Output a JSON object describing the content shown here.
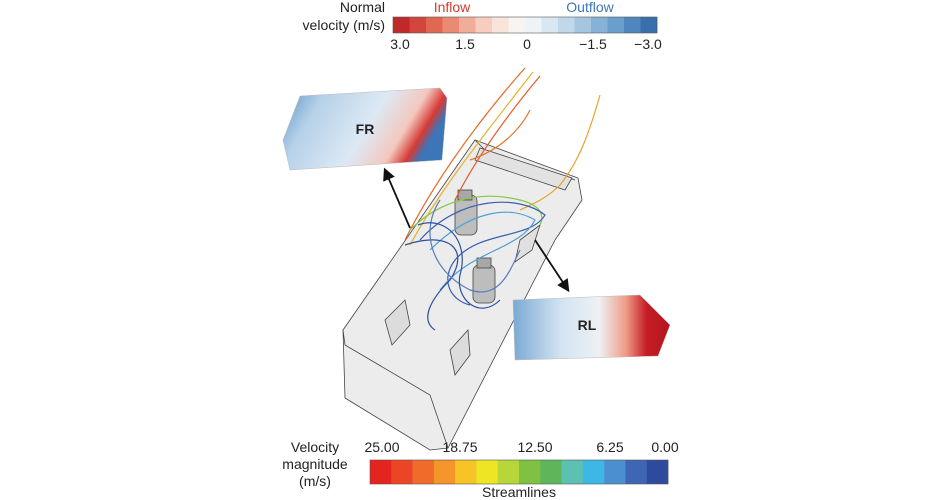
{
  "top_colorbar": {
    "title_lines": [
      "Normal",
      "velocity (m/s)"
    ],
    "inflow": "Inflow",
    "outflow": "Outflow",
    "ticks": [
      "3.0",
      "1.5",
      "0",
      "−1.5",
      "−3.0"
    ]
  },
  "panels": {
    "fr": "FR",
    "rl": "RL"
  },
  "bottom_colorbar": {
    "title_lines": [
      "Velocity",
      "magnitude",
      "(m/s)"
    ],
    "ticks": [
      "25.00",
      "18.75",
      "12.50",
      "6.25",
      "0.00"
    ],
    "caption": "Streamlines"
  }
}
